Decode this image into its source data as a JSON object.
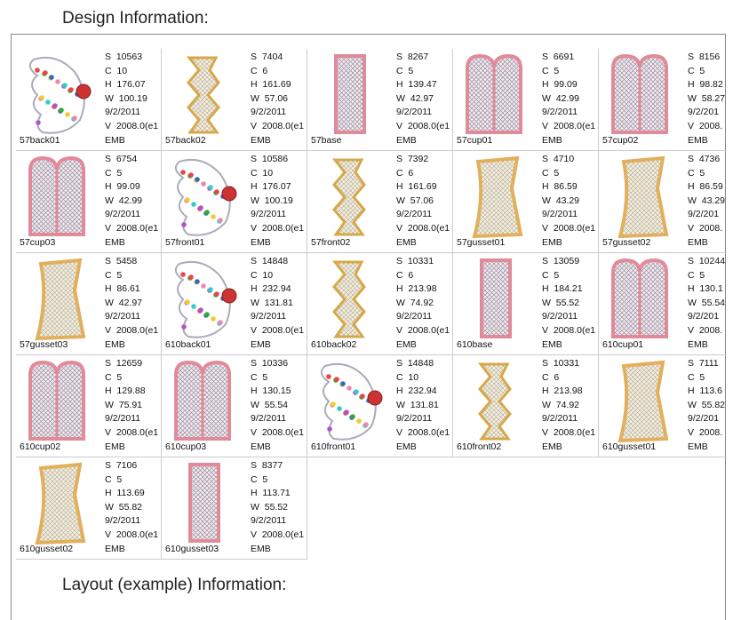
{
  "header": {
    "title": "Design Information:"
  },
  "footer": {
    "title": "Layout (example) Information:"
  },
  "items": [
    {
      "name": "57back01",
      "lines": [
        "S  10563",
        "C  10",
        "H  176.07",
        "W  100.19",
        "9/2/2011",
        "V  2008.0(e1",
        "EMB"
      ]
    },
    {
      "name": "57back02",
      "lines": [
        "S  7404",
        "C  6",
        "H  161.69",
        "W  57.06",
        "9/2/2011",
        "V  2008.0(e1",
        "EMB"
      ]
    },
    {
      "name": "57base",
      "lines": [
        "S  8267",
        "C  5",
        "H  139.47",
        "W  42.97",
        "9/2/2011",
        "V  2008.0(e1",
        "EMB"
      ]
    },
    {
      "name": "57cup01",
      "lines": [
        "S  6691",
        "C  5",
        "H  99.09",
        "W  42.99",
        "9/2/2011",
        "V  2008.0(e1",
        "EMB"
      ]
    },
    {
      "name": "57cup02",
      "lines": [
        "S  8156",
        "C  5",
        "H  98.82",
        "W  58.27",
        "9/2/201",
        "V  2008.",
        "EMB"
      ]
    },
    {
      "name": "57cup03",
      "lines": [
        "S  6754",
        "C  5",
        "H  99.09",
        "W  42.99",
        "9/2/2011",
        "V  2008.0(e1",
        "EMB"
      ]
    },
    {
      "name": "57front01",
      "lines": [
        "S  10586",
        "C  10",
        "H  176.07",
        "W  100.19",
        "9/2/2011",
        "V  2008.0(e1",
        "EMB"
      ]
    },
    {
      "name": "57front02",
      "lines": [
        "S  7392",
        "C  6",
        "H  161.69",
        "W  57.06",
        "9/2/2011",
        "V  2008.0(e1",
        "EMB"
      ]
    },
    {
      "name": "57gusset01",
      "lines": [
        "S  4710",
        "C  5",
        "H  86.59",
        "W  43.29",
        "9/2/2011",
        "V  2008.0(e1",
        "EMB"
      ]
    },
    {
      "name": "57gusset02",
      "lines": [
        "S  4736",
        "C  5",
        "H  86.59",
        "W  43.29",
        "9/2/201",
        "V  2008.",
        "EMB"
      ]
    },
    {
      "name": "57gusset03",
      "lines": [
        "S  5458",
        "C  5",
        "H  86.61",
        "W  42.97",
        "9/2/2011",
        "V  2008.0(e1",
        "EMB"
      ]
    },
    {
      "name": "610back01",
      "lines": [
        "S  14848",
        "C  10",
        "H  232.94",
        "W  131.81",
        "9/2/2011",
        "V  2008.0(e1",
        "EMB"
      ]
    },
    {
      "name": "610back02",
      "lines": [
        "S  10331",
        "C  6",
        "H  213.98",
        "W  74.92",
        "9/2/2011",
        "V  2008.0(e1",
        "EMB"
      ]
    },
    {
      "name": "610base",
      "lines": [
        "S  13059",
        "C  5",
        "H  184.21",
        "W  55.52",
        "9/2/2011",
        "V  2008.0(e1",
        "EMB"
      ]
    },
    {
      "name": "610cup01",
      "lines": [
        "S  10244",
        "C  5",
        "H  130.1",
        "W  55.54",
        "9/2/201",
        "V  2008.",
        "EMB"
      ]
    },
    {
      "name": "610cup02",
      "lines": [
        "S  12659",
        "C  5",
        "H  129.88",
        "W  75.91",
        "9/2/2011",
        "V  2008.0(e1",
        "EMB"
      ]
    },
    {
      "name": "610cup03",
      "lines": [
        "S  10336",
        "C  5",
        "H  130.15",
        "W  55.54",
        "9/2/2011",
        "V  2008.0(e1",
        "EMB"
      ]
    },
    {
      "name": "610front01",
      "lines": [
        "S  14848",
        "C  10",
        "H  232.94",
        "W  131.81",
        "9/2/2011",
        "V  2008.0(e1",
        "EMB"
      ]
    },
    {
      "name": "610front02",
      "lines": [
        "S  10331",
        "C  6",
        "H  213.98",
        "W  74.92",
        "9/2/2011",
        "V  2008.0(e1",
        "EMB"
      ]
    },
    {
      "name": "610gusset01",
      "lines": [
        "S  7111",
        "C  5",
        "H  113.6",
        "W  55.82",
        "9/2/201",
        "V  2008.",
        "EMB"
      ]
    },
    {
      "name": "610gusset02",
      "lines": [
        "S  7106",
        "C  5",
        "H  113.69",
        "W  55.82",
        "9/2/2011",
        "V  2008.0(e1",
        "EMB"
      ]
    },
    {
      "name": "610gusset03",
      "lines": [
        "S  8377",
        "C  5",
        "H  113.71",
        "W  55.52",
        "9/2/2011",
        "V  2008.0(e1",
        "EMB"
      ]
    }
  ]
}
